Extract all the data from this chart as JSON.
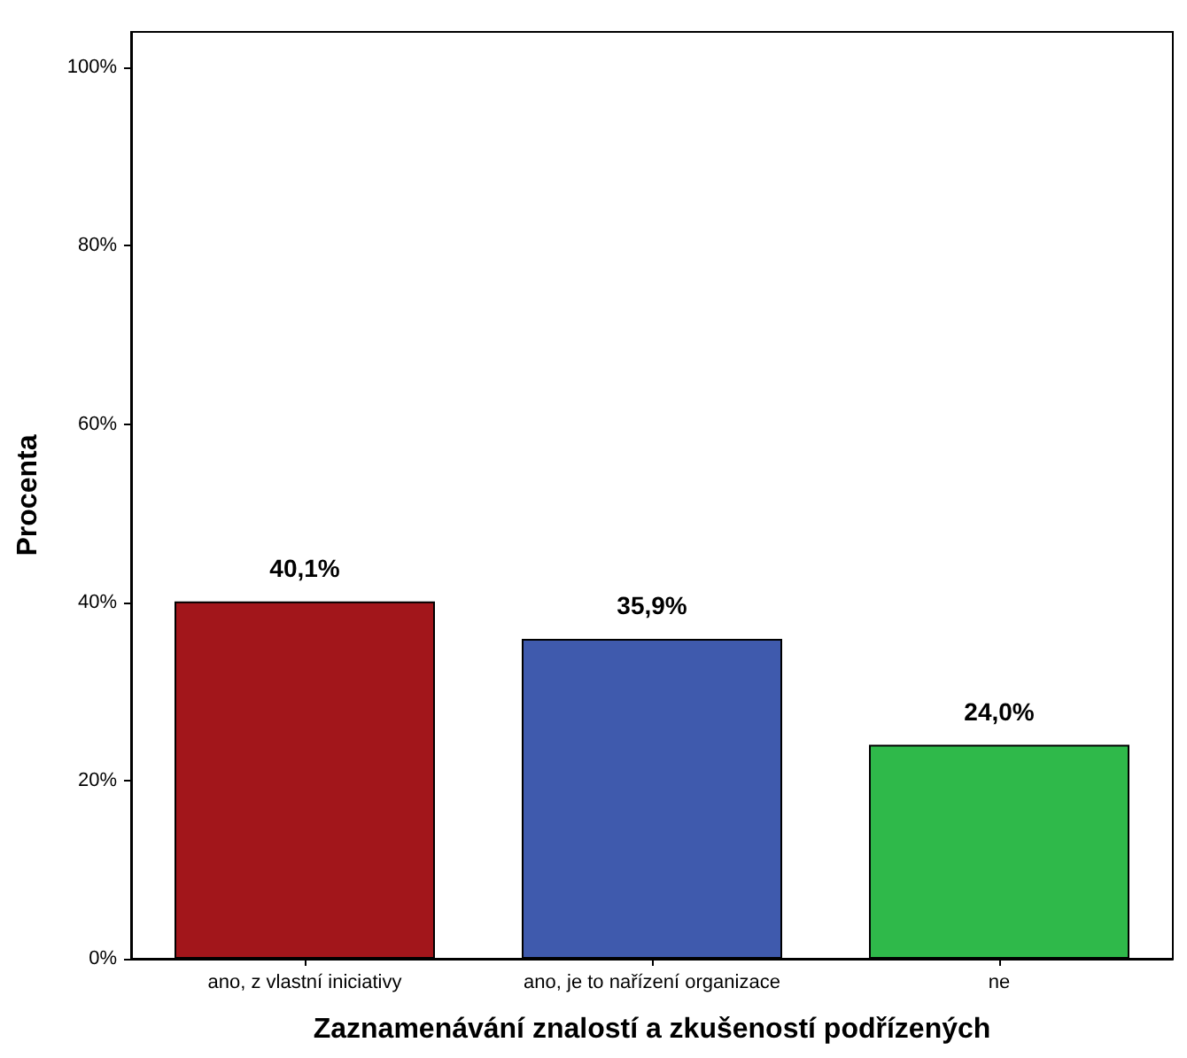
{
  "chart_data": {
    "type": "bar",
    "xlabel": "Zaznamenávání znalostí a zkušeností podřízených",
    "ylabel": "Procenta",
    "categories": [
      "ano, z vlastní iniciativy",
      "ano, je to nařízení organizace",
      "ne"
    ],
    "values": [
      40.1,
      35.9,
      24.0
    ],
    "colors": [
      "#a2161b",
      "#3f5aad",
      "#2fb94a"
    ],
    "value_labels": [
      "40,1%",
      "35,9%",
      "24,0%"
    ],
    "ylim": [
      0,
      104
    ],
    "yticks": [
      {
        "value": 0,
        "label": "0%"
      },
      {
        "value": 20,
        "label": "20%"
      },
      {
        "value": 40,
        "label": "40%"
      },
      {
        "value": 60,
        "label": "60%"
      },
      {
        "value": 80,
        "label": "80%"
      },
      {
        "value": 100,
        "label": "100%"
      }
    ]
  }
}
